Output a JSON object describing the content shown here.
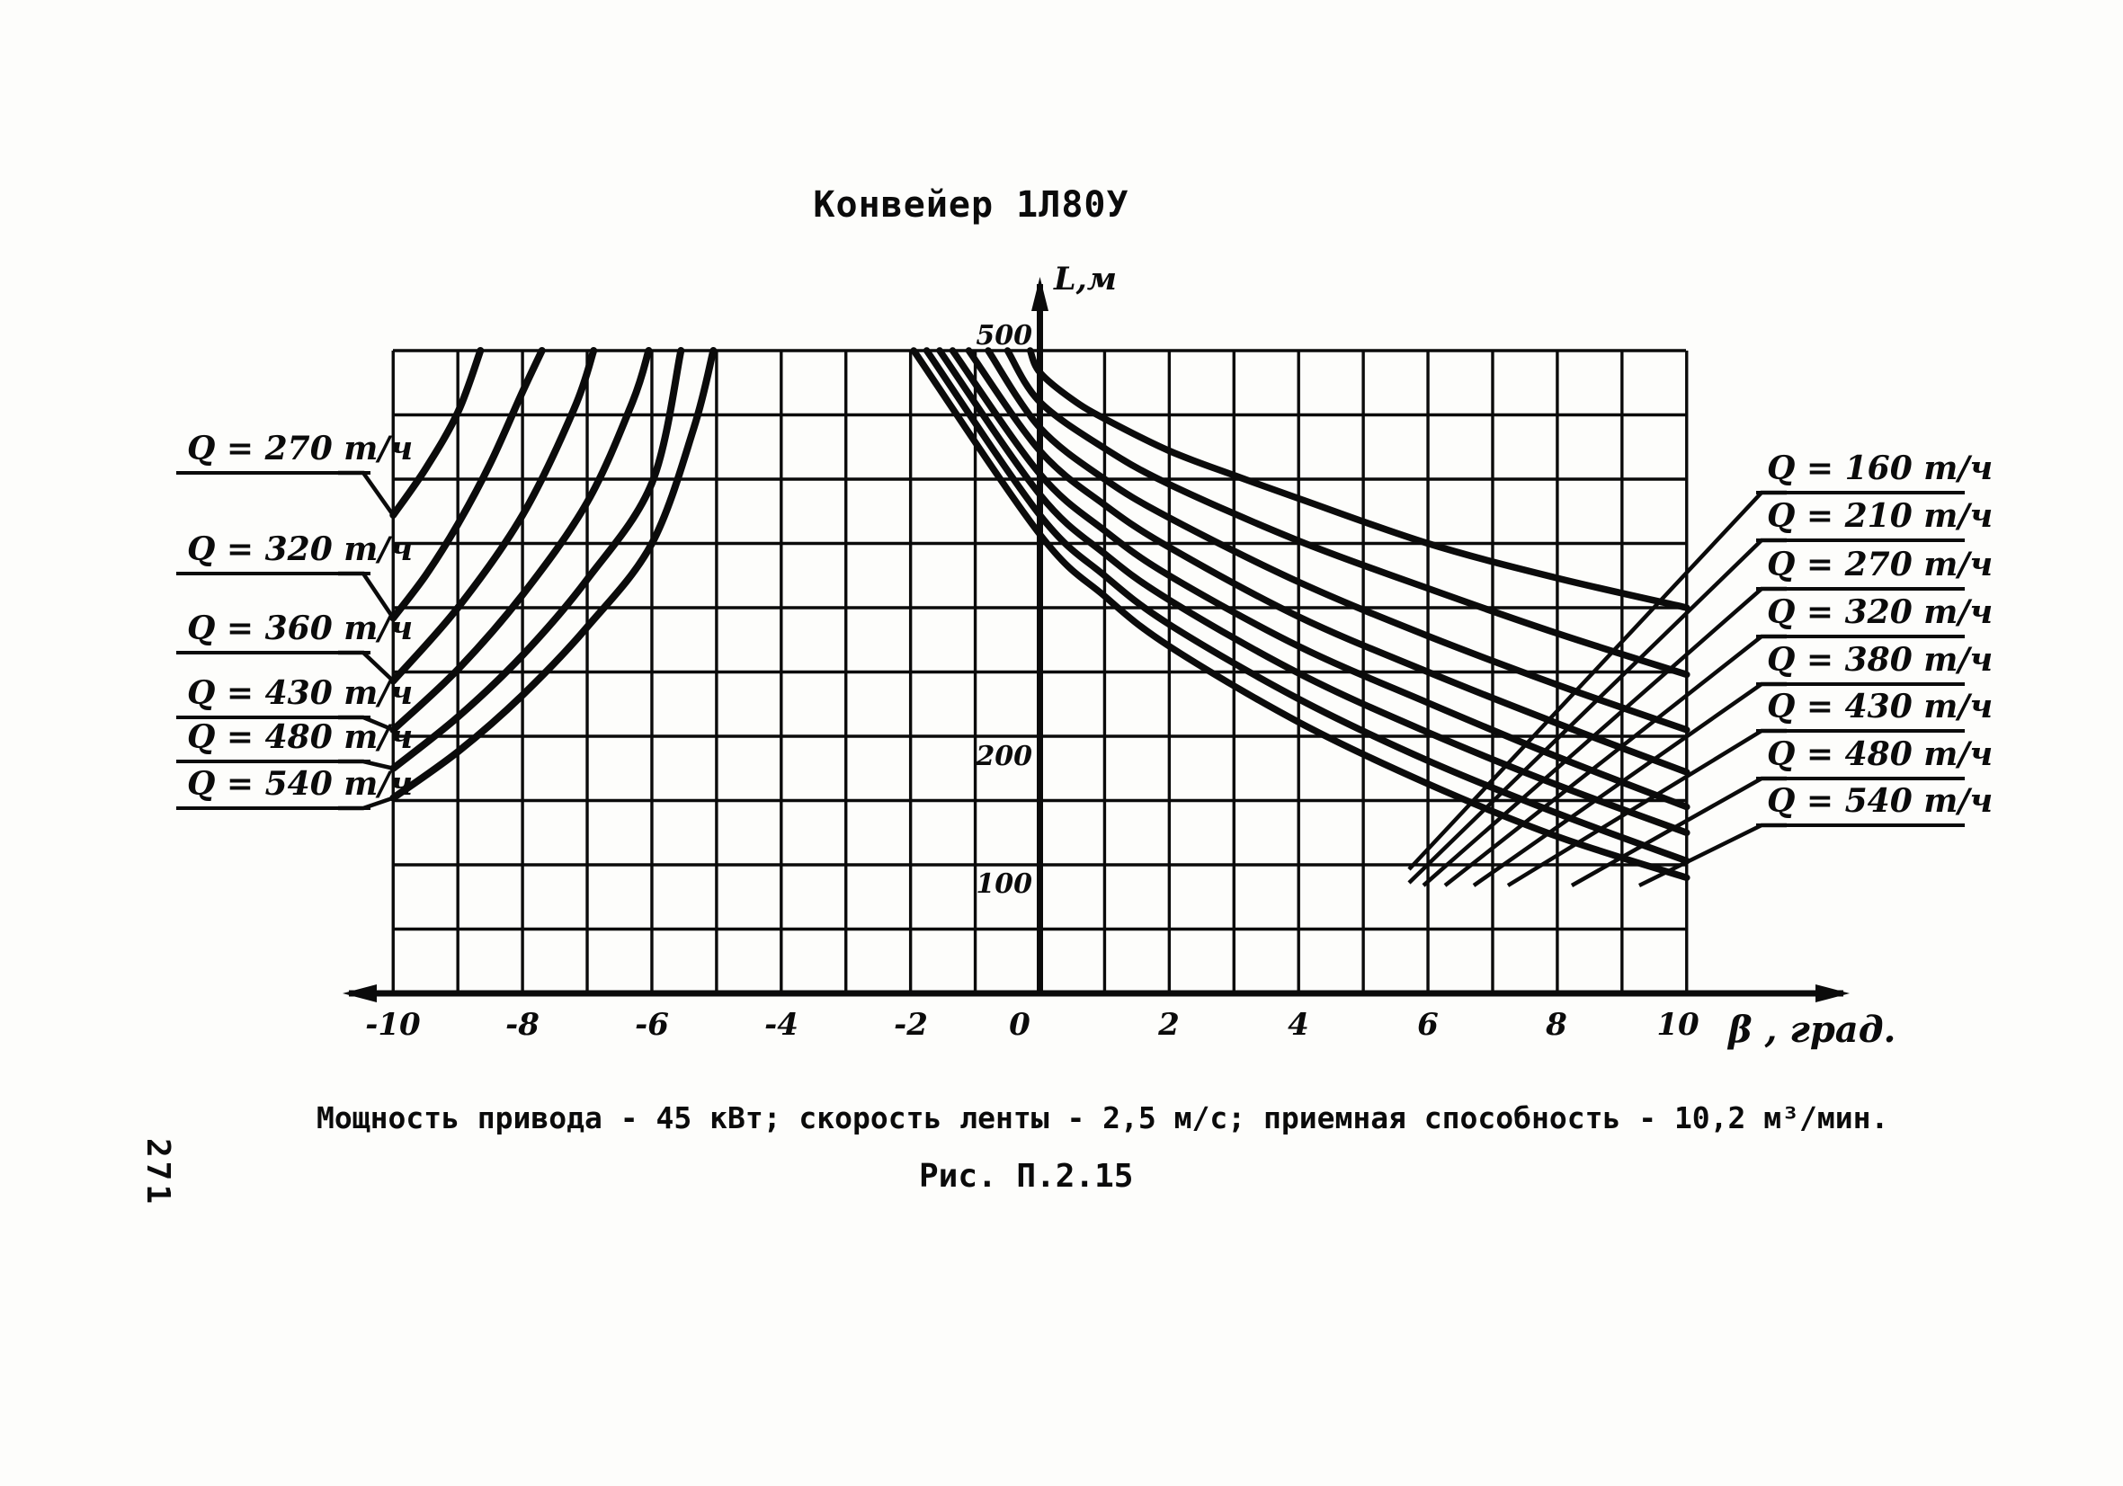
{
  "page_number": "271",
  "title_text": "Конвейер 1Л80У",
  "caption_text": "Мощность привода - 45 кВт; скорость ленты - 2,5 м/с; приемная способность - 10,2 м³/мин.",
  "figure_label": "Рис. П.2.15",
  "ink_color": "#0b0b0b",
  "paper_color": "#fdfdfb",
  "chart_data": {
    "type": "line",
    "title": "Конвейер 1Л80У",
    "xlabel": "β , град.",
    "ylabel": "L,м",
    "xlim": [
      -10,
      10
    ],
    "ylim": [
      0,
      500
    ],
    "grid": "on, 1 градус × 50 м",
    "legend_position": "leader lines to labels at left and right margins",
    "x_tick_labels": [
      "-10",
      "-8",
      "-6",
      "-4",
      "-2",
      "0",
      "2",
      "4",
      "6",
      "8",
      "10"
    ],
    "y_tick_labels": [
      "500",
      "200",
      "100"
    ],
    "left_series": [
      {
        "label": "Q = 270 т/ч",
        "q": 270,
        "points": [
          [
            -10,
            372
          ],
          [
            -9.5,
            408
          ],
          [
            -9,
            452
          ],
          [
            -8.65,
            500
          ]
        ]
      },
      {
        "label": "Q = 320 т/ч",
        "q": 320,
        "points": [
          [
            -10,
            292
          ],
          [
            -9.5,
            325
          ],
          [
            -9,
            365
          ],
          [
            -8.5,
            412
          ],
          [
            -8,
            468
          ],
          [
            -7.7,
            500
          ]
        ]
      },
      {
        "label": "Q = 360 т/ч",
        "q": 360,
        "points": [
          [
            -10,
            243
          ],
          [
            -9,
            300
          ],
          [
            -8,
            372
          ],
          [
            -7.2,
            455
          ],
          [
            -6.9,
            500
          ]
        ]
      },
      {
        "label": "Q = 430 т/ч",
        "q": 430,
        "points": [
          [
            -10,
            205
          ],
          [
            -9,
            252
          ],
          [
            -8,
            310
          ],
          [
            -7,
            382
          ],
          [
            -6.3,
            460
          ],
          [
            -6.05,
            500
          ]
        ]
      },
      {
        "label": "Q = 480 т/ч",
        "q": 480,
        "points": [
          [
            -10,
            175
          ],
          [
            -9,
            215
          ],
          [
            -8,
            263
          ],
          [
            -7,
            322
          ],
          [
            -6,
            397
          ],
          [
            -5.55,
            500
          ]
        ]
      },
      {
        "label": "Q = 540 т/ч",
        "q": 540,
        "points": [
          [
            -10,
            152
          ],
          [
            -9,
            188
          ],
          [
            -8,
            232
          ],
          [
            -7,
            285
          ],
          [
            -6,
            350
          ],
          [
            -5.35,
            440
          ],
          [
            -5.05,
            500
          ]
        ]
      }
    ],
    "right_series": [
      {
        "label": "Q = 160 т/ч",
        "q": 160,
        "points": [
          [
            -0.15,
            500
          ],
          [
            0,
            483
          ],
          [
            0.5,
            462
          ],
          [
            1,
            447
          ],
          [
            2,
            422
          ],
          [
            3,
            403
          ],
          [
            4,
            385
          ],
          [
            6,
            350
          ],
          [
            8,
            323
          ],
          [
            10,
            300
          ]
        ]
      },
      {
        "label": "Q = 210 т/ч",
        "q": 210,
        "points": [
          [
            -0.5,
            500
          ],
          [
            0,
            460
          ],
          [
            1,
            424
          ],
          [
            2,
            396
          ],
          [
            4,
            352
          ],
          [
            6,
            315
          ],
          [
            8,
            280
          ],
          [
            10,
            248
          ]
        ]
      },
      {
        "label": "Q = 270 т/ч",
        "q": 270,
        "points": [
          [
            -0.8,
            500
          ],
          [
            0,
            440
          ],
          [
            1,
            400
          ],
          [
            2,
            370
          ],
          [
            4,
            320
          ],
          [
            6,
            278
          ],
          [
            8,
            240
          ],
          [
            10,
            205
          ]
        ]
      },
      {
        "label": "Q = 320 т/ч",
        "q": 320,
        "points": [
          [
            -1.1,
            500
          ],
          [
            0,
            422
          ],
          [
            1,
            380
          ],
          [
            2,
            347
          ],
          [
            4,
            293
          ],
          [
            6,
            250
          ],
          [
            8,
            210
          ],
          [
            10,
            172
          ]
        ]
      },
      {
        "label": "Q = 380 т/ч",
        "q": 380,
        "points": [
          [
            -1.35,
            500
          ],
          [
            0,
            404
          ],
          [
            1,
            360
          ],
          [
            2,
            325
          ],
          [
            4,
            270
          ],
          [
            6,
            226
          ],
          [
            8,
            184
          ],
          [
            10,
            145
          ]
        ]
      },
      {
        "label": "Q = 430 т/ч",
        "q": 430,
        "points": [
          [
            -1.55,
            500
          ],
          [
            0,
            388
          ],
          [
            1,
            342
          ],
          [
            2,
            306
          ],
          [
            4,
            249
          ],
          [
            6,
            203
          ],
          [
            8,
            162
          ],
          [
            10,
            125
          ]
        ]
      },
      {
        "label": "Q = 480 т/ч",
        "q": 480,
        "points": [
          [
            -1.75,
            500
          ],
          [
            0,
            372
          ],
          [
            1,
            325
          ],
          [
            2,
            287
          ],
          [
            4,
            229
          ],
          [
            6,
            181
          ],
          [
            8,
            140
          ],
          [
            10,
            103
          ]
        ]
      },
      {
        "label": "Q = 540 т/ч",
        "q": 540,
        "points": [
          [
            -1.95,
            500
          ],
          [
            0,
            357
          ],
          [
            1,
            309
          ],
          [
            2,
            270
          ],
          [
            4,
            211
          ],
          [
            6,
            163
          ],
          [
            8,
            122
          ],
          [
            10,
            90
          ]
        ]
      }
    ]
  }
}
